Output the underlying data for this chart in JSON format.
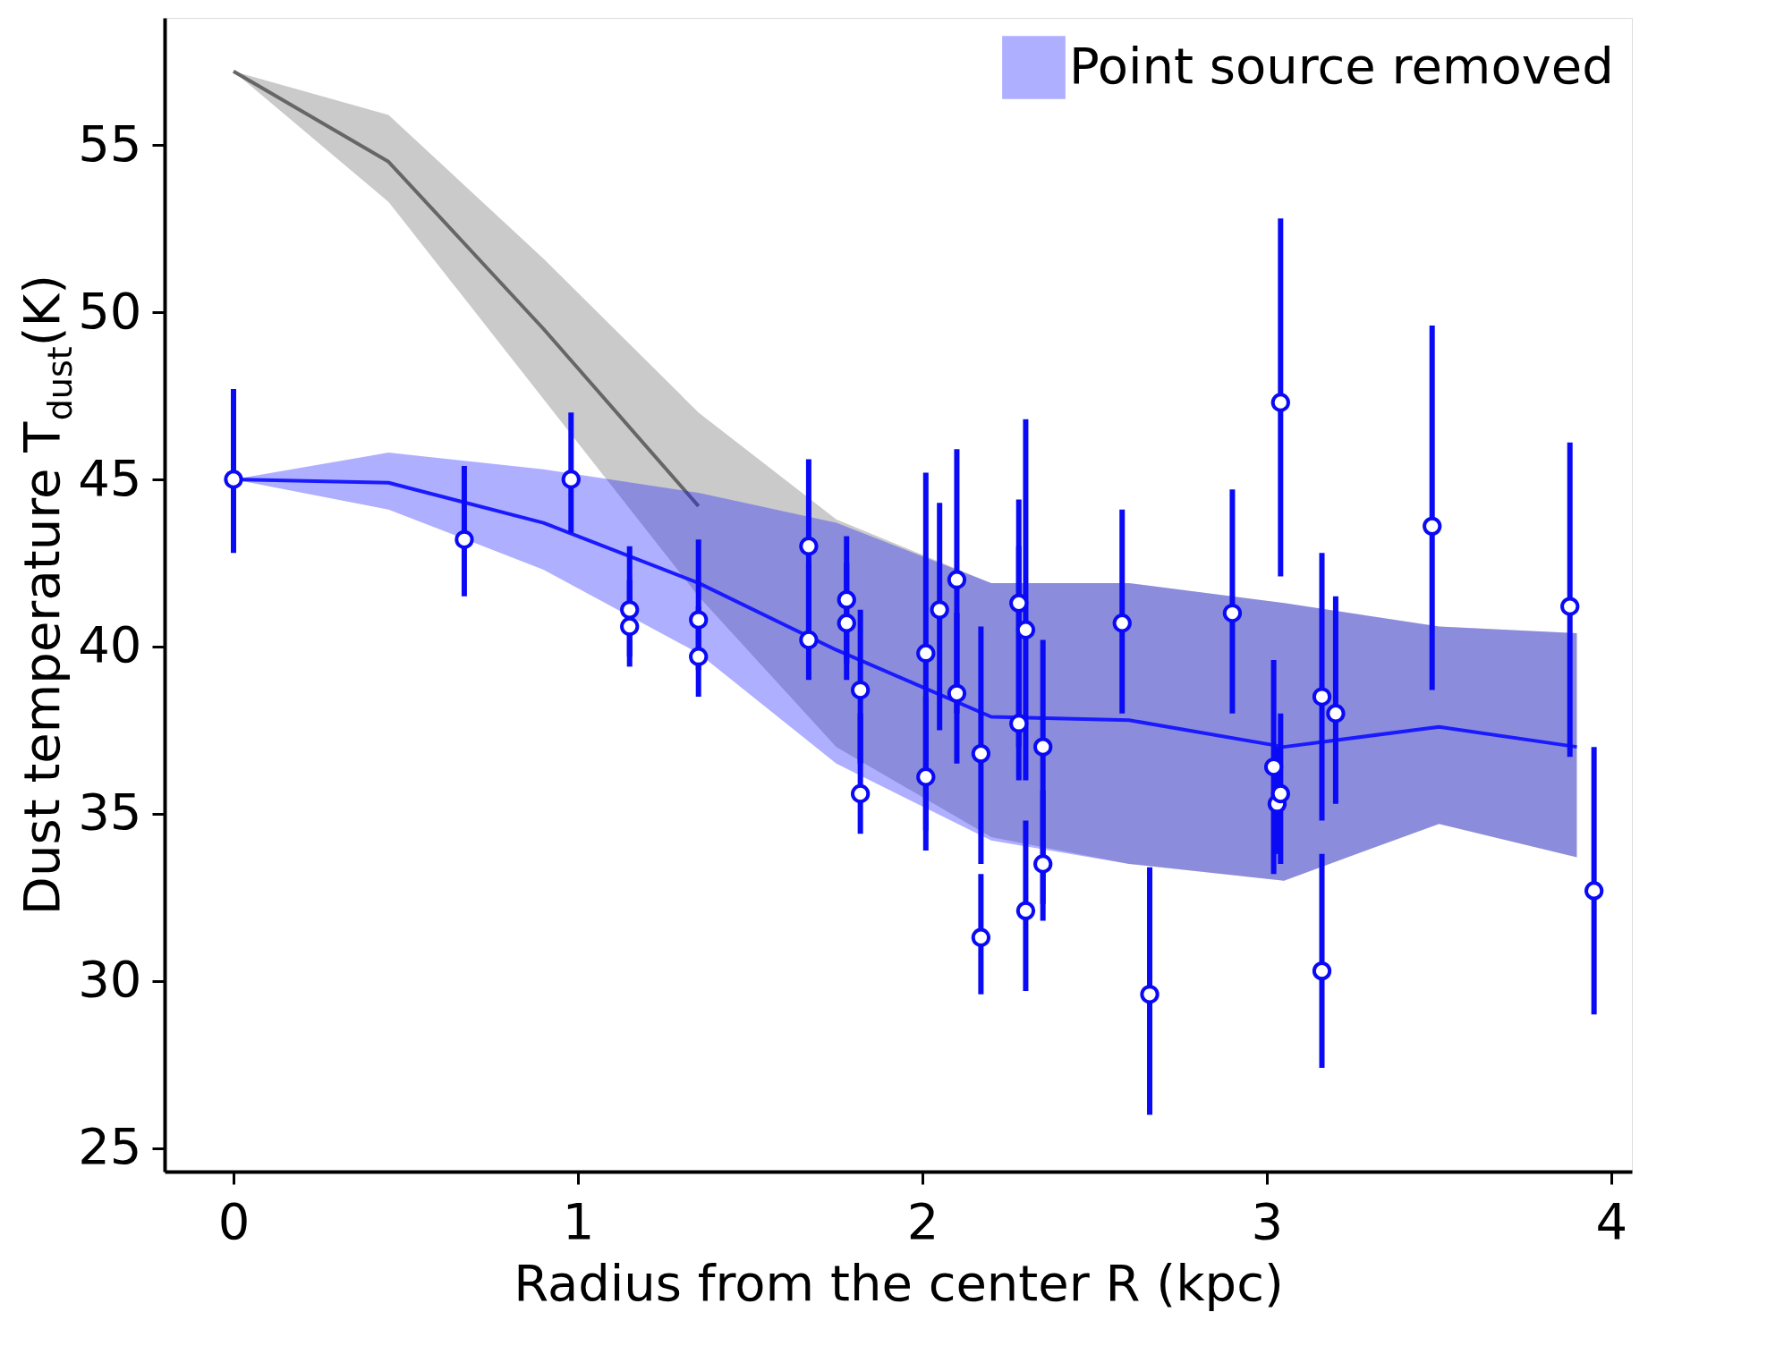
{
  "chart_data": {
    "type": "scatter",
    "xlabel": "Radius from the center R (kpc)",
    "ylabel": "Dust temperature T$_{dust}$(K)",
    "xlim": [
      -0.2,
      4.06
    ],
    "ylim": [
      24.3,
      58.8
    ],
    "xticks": [
      0,
      1,
      2,
      3,
      4
    ],
    "yticks": [
      25,
      30,
      35,
      40,
      45,
      50,
      55
    ],
    "grid": false,
    "legend": "top right",
    "series": [
      {
        "type": "line",
        "color": "#666666",
        "x": [
          0,
          0.45,
          0.9,
          1.35,
          1.75,
          2.2,
          2.6,
          3.05,
          3.5,
          3.9
        ],
        "values": [
          57.2,
          54.5,
          49.5,
          44.2,
          null,
          null,
          null,
          null,
          null,
          null
        ],
        "lower": [
          57.2,
          53.3,
          47.4,
          41.5,
          37.0,
          34.3,
          33.5,
          33.0,
          34.7,
          33.7
        ],
        "upper": [
          57.2,
          55.9,
          51.6,
          47.0,
          43.8,
          41.9,
          41.9,
          41.3,
          40.6,
          40.4
        ]
      },
      {
        "type": "line",
        "name": "Point source removed",
        "color": "#1a1aff",
        "x": [
          0,
          0.45,
          0.9,
          1.35,
          1.75,
          2.2,
          2.6,
          3.05,
          3.5,
          3.9
        ],
        "values": [
          45.0,
          44.9,
          43.7,
          41.9,
          39.9,
          37.9,
          37.8,
          37.0,
          37.6,
          37.0
        ],
        "lower": [
          45.0,
          44.1,
          42.3,
          39.8,
          36.5,
          34.2,
          33.5,
          33.0,
          34.7,
          33.7
        ],
        "upper": [
          45.0,
          45.8,
          45.3,
          44.6,
          43.7,
          41.9,
          41.9,
          41.3,
          40.6,
          40.4
        ]
      },
      {
        "marker": "circle",
        "color": "#0a0af5",
        "x": [
          0,
          0.67,
          0.98,
          1.15,
          1.15,
          1.35,
          1.35,
          1.67,
          1.67,
          1.78,
          1.78,
          1.82,
          1.82,
          2.01,
          2.01,
          2.05,
          2.1,
          2.1,
          2.17,
          2.17,
          2.28,
          2.28,
          2.3,
          2.3,
          2.35,
          2.35,
          2.58,
          2.66,
          2.9,
          3.02,
          3.03,
          3.04,
          3.04,
          3.16,
          3.16,
          3.2,
          3.48,
          3.88,
          3.95
        ],
        "values": [
          45.0,
          43.2,
          45.0,
          41.1,
          40.6,
          40.8,
          39.7,
          43.0,
          40.2,
          41.4,
          40.7,
          38.7,
          35.6,
          39.8,
          36.1,
          41.1,
          42.0,
          38.6,
          36.8,
          31.3,
          41.3,
          37.7,
          40.5,
          32.1,
          37.0,
          33.5,
          40.7,
          29.6,
          41.0,
          36.4,
          35.3,
          35.6,
          47.3,
          38.5,
          30.3,
          38.0,
          43.6,
          41.2,
          32.7
        ],
        "errors": [
          [
            42.8,
            47.7
          ],
          [
            41.5,
            45.4
          ],
          [
            43.4,
            47.0
          ],
          [
            39.7,
            43.0
          ],
          [
            39.4,
            42.0
          ],
          [
            39.3,
            43.2
          ],
          [
            38.5,
            41.2
          ],
          [
            40.5,
            45.6
          ],
          [
            39.0,
            42.5
          ],
          [
            39.5,
            43.3
          ],
          [
            39.0,
            42.5
          ],
          [
            36.5,
            41.1
          ],
          [
            34.4,
            38.0
          ],
          [
            34.5,
            45.2
          ],
          [
            33.9,
            38.5
          ],
          [
            37.5,
            44.3
          ],
          [
            38.0,
            45.9
          ],
          [
            36.5,
            41.0
          ],
          [
            33.5,
            40.6
          ],
          [
            29.6,
            33.2
          ],
          [
            37.0,
            44.4
          ],
          [
            36.0,
            43.0
          ],
          [
            36.0,
            46.8
          ],
          [
            29.7,
            34.8
          ],
          [
            32.3,
            40.2
          ],
          [
            31.8,
            35.7
          ],
          [
            38.0,
            44.1
          ],
          [
            26.0,
            33.4
          ],
          [
            38.0,
            44.7
          ],
          [
            33.2,
            39.6
          ],
          [
            33.8,
            37.0
          ],
          [
            33.5,
            38.0
          ],
          [
            42.1,
            52.8
          ],
          [
            34.8,
            42.8
          ],
          [
            27.4,
            33.8
          ],
          [
            35.3,
            41.5
          ],
          [
            38.7,
            49.6
          ],
          [
            36.7,
            46.1
          ],
          [
            29.0,
            37.0
          ]
        ]
      }
    ]
  }
}
